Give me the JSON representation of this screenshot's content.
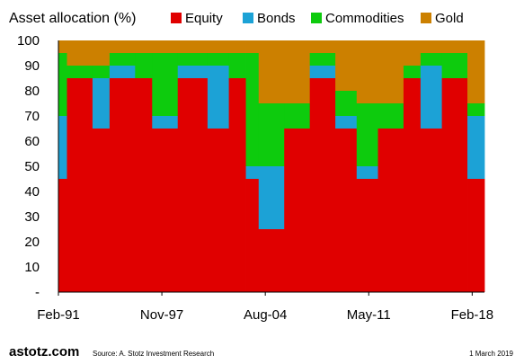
{
  "chart_data": {
    "type": "area",
    "title": "Asset allocation (%)",
    "xlabel": "",
    "ylabel": "",
    "ylim": [
      0,
      100
    ],
    "yticks": [
      "-",
      "10",
      "20",
      "30",
      "40",
      "50",
      "60",
      "70",
      "80",
      "90",
      "100"
    ],
    "xticks": [
      "Feb-91",
      "Nov-97",
      "Aug-04",
      "May-11",
      "Feb-18"
    ],
    "legend_position": "top",
    "grid": false,
    "stacked": true,
    "series": [
      {
        "name": "Equity",
        "color": "#e00000"
      },
      {
        "name": "Bonds",
        "color": "#1ca2d6"
      },
      {
        "name": "Commodities",
        "color": "#0dcb0d"
      },
      {
        "name": "Gold",
        "color": "#cc8000"
      }
    ],
    "x_span_years": [
      "1991-02",
      "2019-03"
    ],
    "periods": [
      {
        "x0": 0.0,
        "x1": 0.02,
        "values": [
          45,
          25,
          25,
          5
        ]
      },
      {
        "x0": 0.02,
        "x1": 0.08,
        "values": [
          85,
          0,
          5,
          10
        ]
      },
      {
        "x0": 0.08,
        "x1": 0.12,
        "values": [
          65,
          20,
          5,
          10
        ]
      },
      {
        "x0": 0.12,
        "x1": 0.18,
        "values": [
          85,
          5,
          5,
          5
        ]
      },
      {
        "x0": 0.18,
        "x1": 0.22,
        "values": [
          85,
          0,
          10,
          5
        ]
      },
      {
        "x0": 0.22,
        "x1": 0.28,
        "values": [
          65,
          5,
          25,
          5
        ]
      },
      {
        "x0": 0.28,
        "x1": 0.35,
        "values": [
          85,
          5,
          5,
          5
        ]
      },
      {
        "x0": 0.35,
        "x1": 0.4,
        "values": [
          65,
          25,
          5,
          5
        ]
      },
      {
        "x0": 0.4,
        "x1": 0.44,
        "values": [
          85,
          0,
          10,
          5
        ]
      },
      {
        "x0": 0.44,
        "x1": 0.47,
        "values": [
          45,
          5,
          45,
          5
        ]
      },
      {
        "x0": 0.47,
        "x1": 0.53,
        "values": [
          25,
          25,
          25,
          25
        ]
      },
      {
        "x0": 0.53,
        "x1": 0.59,
        "values": [
          65,
          0,
          10,
          25
        ]
      },
      {
        "x0": 0.59,
        "x1": 0.65,
        "values": [
          85,
          5,
          5,
          5
        ]
      },
      {
        "x0": 0.65,
        "x1": 0.7,
        "values": [
          65,
          5,
          10,
          20
        ]
      },
      {
        "x0": 0.7,
        "x1": 0.75,
        "values": [
          45,
          5,
          25,
          25
        ]
      },
      {
        "x0": 0.75,
        "x1": 0.81,
        "values": [
          65,
          0,
          10,
          25
        ]
      },
      {
        "x0": 0.81,
        "x1": 0.85,
        "values": [
          85,
          0,
          5,
          10
        ]
      },
      {
        "x0": 0.85,
        "x1": 0.9,
        "values": [
          65,
          25,
          5,
          5
        ]
      },
      {
        "x0": 0.9,
        "x1": 0.96,
        "values": [
          85,
          0,
          10,
          5
        ]
      },
      {
        "x0": 0.96,
        "x1": 1.0,
        "values": [
          45,
          25,
          5,
          25
        ]
      }
    ]
  },
  "footer": {
    "brand": "astotz.com",
    "source": "Source: A. Stotz Investment Research",
    "date": "1 March 2019"
  }
}
